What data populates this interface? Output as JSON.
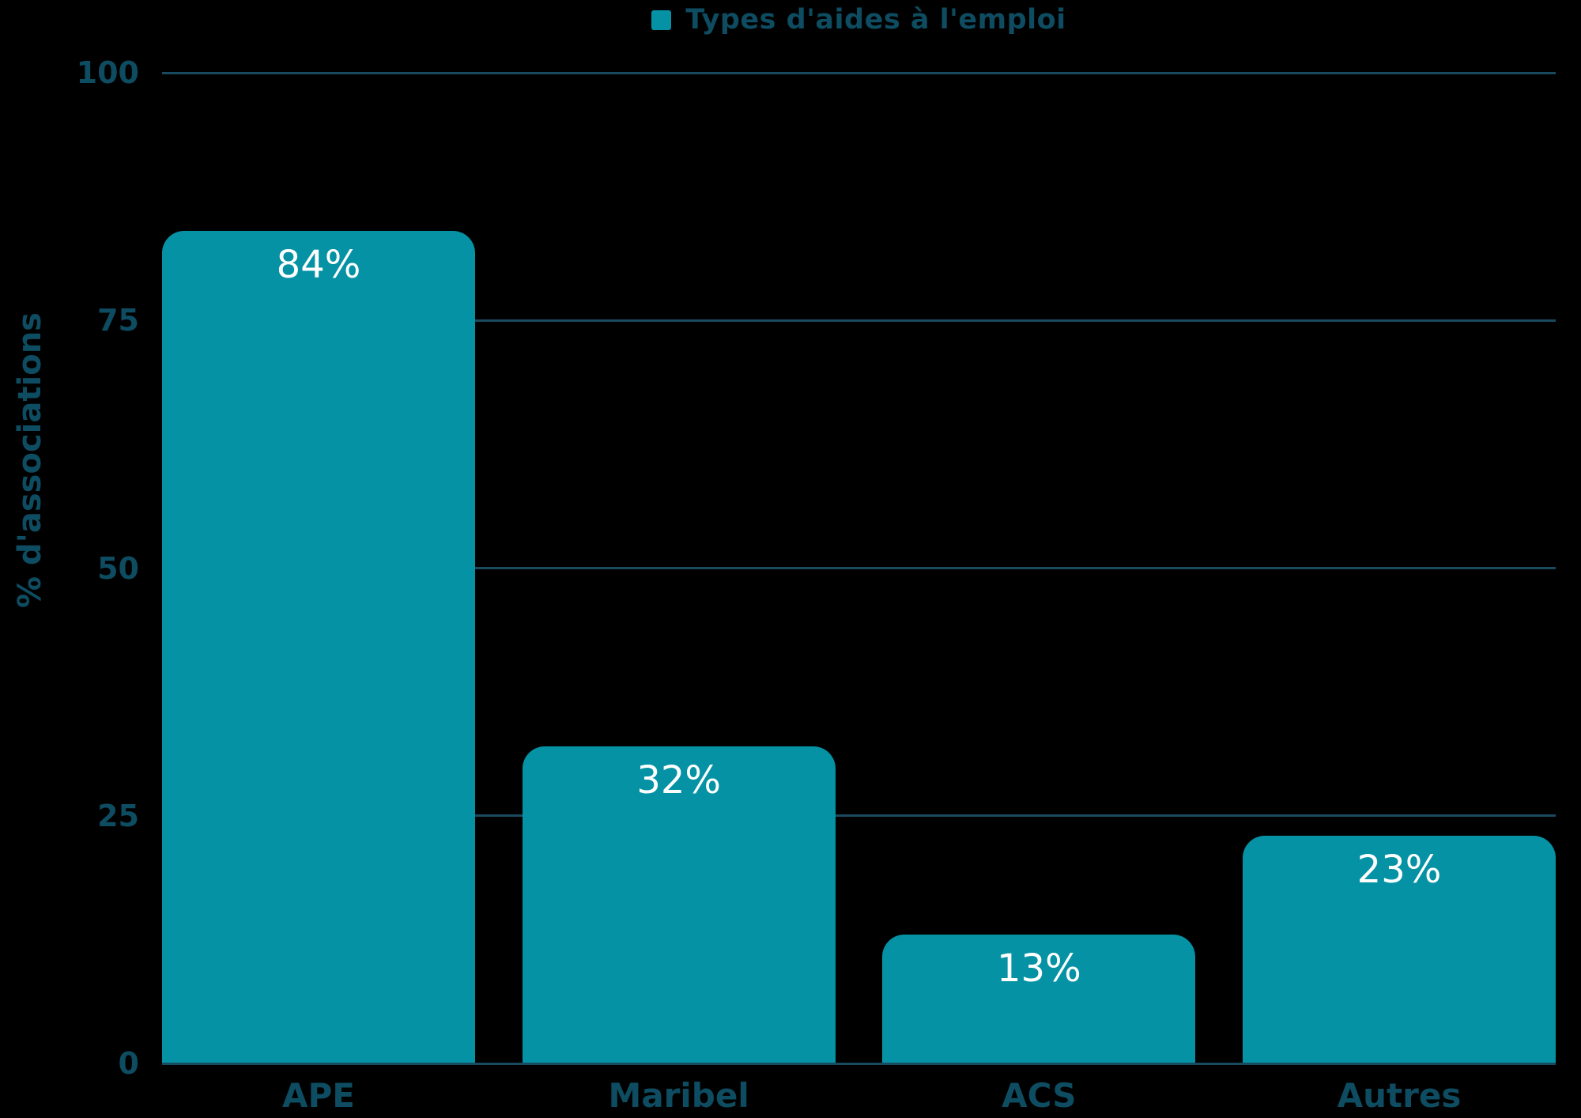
{
  "chart_data": {
    "type": "bar",
    "title": "Types d'aides à l'emploi",
    "categories": [
      "APE",
      "Maribel",
      "ACS",
      "Autres"
    ],
    "values": [
      84,
      32,
      13,
      23
    ],
    "value_labels": [
      "84%",
      "32%",
      "13%",
      "23%"
    ],
    "xlabel": "",
    "ylabel": "% d'associations",
    "ylim": [
      0,
      100
    ],
    "yticks": [
      0,
      25,
      50,
      75,
      100
    ],
    "grid": true,
    "legend": {
      "position": "top-center",
      "items": [
        {
          "label": "Types d'aides à l'emploi",
          "marker_color": "#0492a4"
        }
      ]
    },
    "colors": {
      "bar": "#0492a4",
      "axis_text": "#0e4c61",
      "gridline": "#1a4a5f",
      "value_label": "#ffffff",
      "background": "#000000"
    }
  }
}
